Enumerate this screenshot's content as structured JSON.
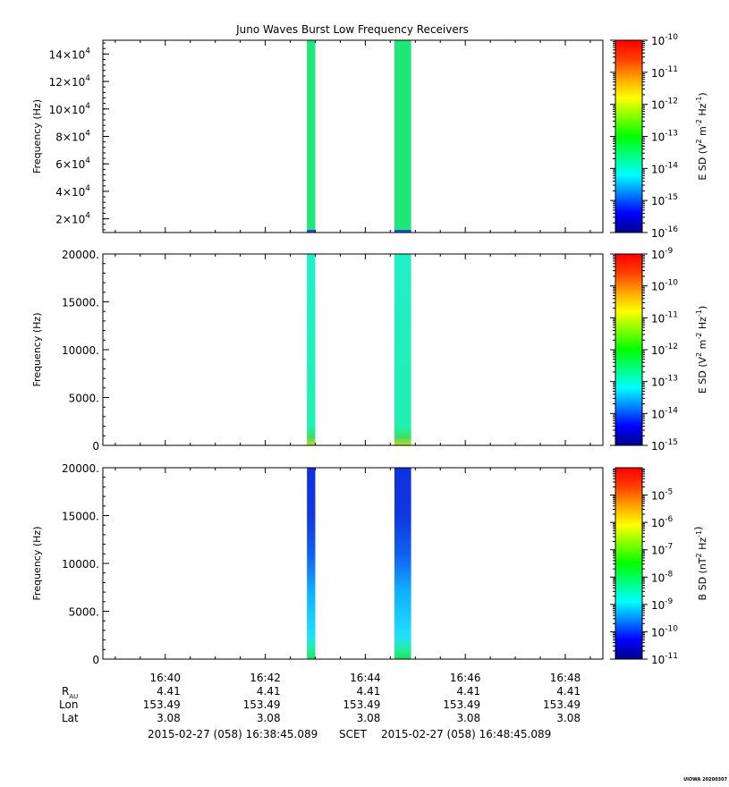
{
  "title": "Juno Waves Burst Low Frequency Receivers",
  "colors": {
    "colorbar": [
      "#00008b",
      "#0000ff",
      "#0080ff",
      "#00ffff",
      "#00ff80",
      "#00ff00",
      "#80ff00",
      "#ffff00",
      "#ffa500",
      "#ff4000",
      "#ff0000"
    ],
    "spectrogram_top": "#1ee878",
    "spectrogram_mid": "#1ef0c8",
    "spectrogram_bot_high": "#1030e0",
    "spectrogram_bot_low": "#20e0ff"
  },
  "chart_data": [
    {
      "type": "heatmap",
      "panel": "top",
      "ylabel": "Frequency (Hz)",
      "y_tick_labels": [
        {
          "base": "2×10",
          "exp": "4",
          "value": 20000
        },
        {
          "base": "4×10",
          "exp": "4",
          "value": 40000
        },
        {
          "base": "6×10",
          "exp": "4",
          "value": 60000
        },
        {
          "base": "8×10",
          "exp": "4",
          "value": 80000
        },
        {
          "base": "10×10",
          "exp": "4",
          "value": 100000
        },
        {
          "base": "12×10",
          "exp": "4",
          "value": 120000
        },
        {
          "base": "14×10",
          "exp": "4",
          "value": 140000
        }
      ],
      "ylim": [
        10000,
        150000
      ],
      "data_intervals": [
        [
          "16:42:50",
          "16:43:00"
        ],
        [
          "16:44:35",
          "16:44:55"
        ]
      ],
      "colorbar": {
        "label": "E SD (V2 m-2 Hz-1)",
        "label_parts": {
          "pre": "E SD (V",
          "sup1": "2",
          "mid": " m",
          "sup2": "-2",
          "mid2": " Hz",
          "sup3": "-1",
          "post": ")"
        },
        "tick_labels": [
          {
            "base": "10",
            "exp": "-10"
          },
          {
            "base": "10",
            "exp": "-11"
          },
          {
            "base": "10",
            "exp": "-12"
          },
          {
            "base": "10",
            "exp": "-13"
          },
          {
            "base": "10",
            "exp": "-14"
          },
          {
            "base": "10",
            "exp": "-15"
          },
          {
            "base": "10",
            "exp": "-16"
          }
        ],
        "range": [
          1e-16,
          1e-10
        ],
        "scale": "log"
      }
    },
    {
      "type": "heatmap",
      "panel": "middle",
      "ylabel": "Frequency (Hz)",
      "y_tick_labels": [
        "20000.",
        "15000.",
        "10000.",
        "5000.",
        "0"
      ],
      "ylim": [
        0,
        20000
      ],
      "data_intervals": [
        [
          "16:42:50",
          "16:43:00"
        ],
        [
          "16:44:35",
          "16:44:55"
        ]
      ],
      "colorbar": {
        "label": "E SD (V2 m-2 Hz-1)",
        "label_parts": {
          "pre": "E SD (V",
          "sup1": "2",
          "mid": " m",
          "sup2": "-2",
          "mid2": " Hz",
          "sup3": "-1",
          "post": ")"
        },
        "tick_labels": [
          {
            "base": "10",
            "exp": "-9"
          },
          {
            "base": "10",
            "exp": "-10"
          },
          {
            "base": "10",
            "exp": "-11"
          },
          {
            "base": "10",
            "exp": "-12"
          },
          {
            "base": "10",
            "exp": "-13"
          },
          {
            "base": "10",
            "exp": "-14"
          },
          {
            "base": "10",
            "exp": "-15"
          }
        ],
        "range": [
          1e-15,
          1e-09
        ],
        "scale": "log"
      }
    },
    {
      "type": "heatmap",
      "panel": "bottom",
      "ylabel": "Frequency (Hz)",
      "y_tick_labels": [
        "20000.",
        "15000.",
        "10000.",
        "5000.",
        "0"
      ],
      "ylim": [
        0,
        20000
      ],
      "data_intervals": [
        [
          "16:42:50",
          "16:43:00"
        ],
        [
          "16:44:35",
          "16:44:55"
        ]
      ],
      "colorbar": {
        "label": "B SD (nT2 Hz-1)",
        "label_parts": {
          "pre": "B SD (nT",
          "sup1": "2",
          "mid": " Hz",
          "sup2": "-1",
          "post": ")"
        },
        "tick_labels": [
          {
            "base": "10",
            "exp": "-5"
          },
          {
            "base": "10",
            "exp": "-6"
          },
          {
            "base": "10",
            "exp": "-7"
          },
          {
            "base": "10",
            "exp": "-8"
          },
          {
            "base": "10",
            "exp": "-9"
          },
          {
            "base": "10",
            "exp": "-10"
          },
          {
            "base": "10",
            "exp": "-11"
          }
        ],
        "range": [
          1e-11,
          0.0001
        ],
        "scale": "log"
      }
    }
  ],
  "time_axis": {
    "tick_labels": [
      "16:40",
      "16:42",
      "16:44",
      "16:46",
      "16:48"
    ],
    "xlim": [
      "16:38:45.089",
      "16:48:45.089"
    ]
  },
  "ephemeris": {
    "row_labels": {
      "rau_main": "R",
      "rau_sub": "AU",
      "lon": "Lon",
      "lat": "Lat"
    },
    "rau": [
      "4.41",
      "4.41",
      "4.41",
      "4.41",
      "4.41"
    ],
    "lon": [
      "153.49",
      "153.49",
      "153.49",
      "153.49",
      "153.49"
    ],
    "lat": [
      "3.08",
      "3.08",
      "3.08",
      "3.08",
      "3.08"
    ]
  },
  "footer": {
    "start": "2015-02-27 (058) 16:38:45.089",
    "frame": "SCET",
    "end": "2015-02-27 (058) 16:48:45.089"
  },
  "stamp": "UIOWA 20200307"
}
